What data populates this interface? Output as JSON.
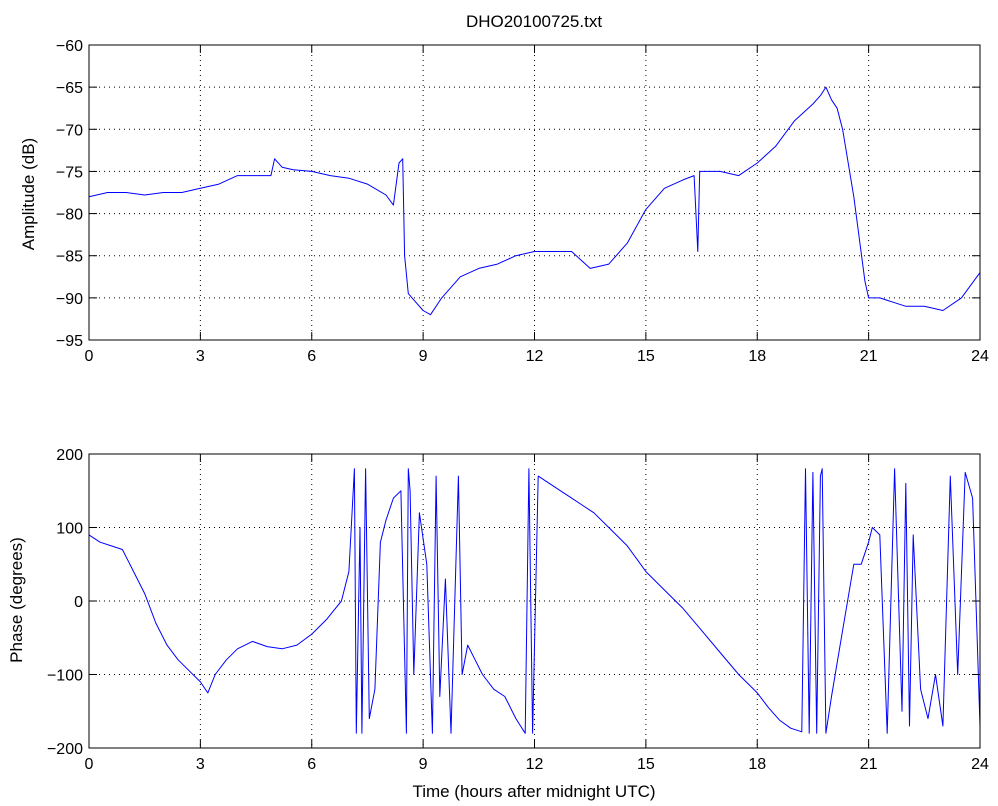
{
  "chart_data": [
    {
      "type": "line",
      "title": "DHO20100725.txt",
      "xlabel": "",
      "ylabel": "Amplitude (dB)",
      "xlim": [
        0,
        24
      ],
      "ylim": [
        -95,
        -60
      ],
      "xticks": [
        "0",
        "3",
        "6",
        "9",
        "12",
        "15",
        "18",
        "21",
        "24"
      ],
      "yticks": [
        "-95",
        "-90",
        "-85",
        "-80",
        "-75",
        "-70",
        "-65",
        "-60"
      ],
      "grid": true,
      "color": "#0000ff",
      "series": [
        {
          "x": [
            0,
            0.5,
            1,
            1.5,
            2,
            2.5,
            3,
            3.5,
            4,
            4.5,
            4.9,
            5.0,
            5.2,
            5.5,
            6,
            6.5,
            7,
            7.5,
            8,
            8.2,
            8.35,
            8.45,
            8.5,
            8.6,
            8.8,
            9.0,
            9.2,
            9.5,
            10,
            10.5,
            11,
            11.5,
            12,
            12.5,
            13,
            13.5,
            14,
            14.5,
            15,
            15.5,
            16,
            16.3,
            16.4,
            16.45,
            16.6,
            17,
            17.5,
            18,
            18.5,
            19,
            19.5,
            19.7,
            19.85,
            20,
            20.15,
            20.3,
            20.6,
            20.9,
            21,
            21.3,
            22,
            22.5,
            23,
            23.5,
            24
          ],
          "y": [
            -78,
            -77.5,
            -77.5,
            -77.8,
            -77.5,
            -77.5,
            -77,
            -76.5,
            -75.5,
            -75.5,
            -75.5,
            -73.5,
            -74.5,
            -74.8,
            -75,
            -75.5,
            -75.8,
            -76.5,
            -77.8,
            -79,
            -74,
            -73.5,
            -85,
            -89.5,
            -90.5,
            -91.5,
            -92,
            -90,
            -87.5,
            -86.5,
            -86,
            -85,
            -84.5,
            -84.5,
            -84.5,
            -86.5,
            -86,
            -83.5,
            -79.5,
            -77,
            -76,
            -75.5,
            -84.5,
            -75,
            -75,
            -75,
            -75.5,
            -74,
            -72,
            -69,
            -67,
            -66,
            -65,
            -66.5,
            -67.5,
            -70,
            -78,
            -88,
            -90,
            -90,
            -91,
            -91,
            -91.5,
            -90,
            -87
          ]
        }
      ]
    },
    {
      "type": "line",
      "title": "",
      "xlabel": "Time (hours after midnight UTC)",
      "ylabel": "Phase (degrees)",
      "xlim": [
        0,
        24
      ],
      "ylim": [
        -200,
        200
      ],
      "xticks": [
        "0",
        "3",
        "6",
        "9",
        "12",
        "15",
        "18",
        "21",
        "24"
      ],
      "yticks": [
        "-200",
        "-100",
        "0",
        "100",
        "200"
      ],
      "grid": true,
      "color": "#0000ff",
      "series": [
        {
          "x": [
            0,
            0.3,
            0.6,
            0.9,
            1.2,
            1.5,
            1.8,
            2.1,
            2.4,
            2.7,
            3.0,
            3.2,
            3.4,
            3.7,
            4.0,
            4.4,
            4.8,
            5.2,
            5.6,
            6.0,
            6.4,
            6.8,
            7.0,
            7.15,
            7.2,
            7.3,
            7.35,
            7.45,
            7.55,
            7.7,
            7.85,
            8.0,
            8.2,
            8.4,
            8.55,
            8.6,
            8.65,
            8.75,
            8.9,
            9.1,
            9.25,
            9.35,
            9.45,
            9.6,
            9.75,
            9.95,
            10.05,
            10.2,
            10.4,
            10.6,
            10.9,
            11.2,
            11.5,
            11.75,
            11.85,
            11.95,
            12.1,
            12.4,
            12.7,
            13.0,
            13.3,
            13.6,
            14.0,
            14.5,
            15.0,
            15.5,
            16.0,
            16.5,
            17.0,
            17.5,
            18.0,
            18.3,
            18.6,
            18.9,
            19.2,
            19.3,
            19.4,
            19.5,
            19.6,
            19.7,
            19.75,
            19.85,
            20.0,
            20.3,
            20.6,
            20.8,
            21.0,
            21.1,
            21.3,
            21.5,
            21.7,
            21.9,
            22.0,
            22.1,
            22.2,
            22.4,
            22.6,
            22.8,
            23.0,
            23.2,
            23.4,
            23.6,
            23.8,
            24.0
          ],
          "y": [
            90,
            80,
            75,
            70,
            40,
            10,
            -30,
            -60,
            -80,
            -95,
            -110,
            -125,
            -100,
            -80,
            -65,
            -55,
            -62,
            -65,
            -60,
            -45,
            -25,
            0,
            40,
            180,
            -180,
            100,
            -180,
            180,
            -160,
            -120,
            80,
            110,
            140,
            150,
            -180,
            180,
            150,
            -100,
            120,
            50,
            -180,
            170,
            -130,
            30,
            -180,
            170,
            -100,
            -60,
            -80,
            -100,
            -120,
            -130,
            -160,
            -180,
            180,
            -180,
            170,
            160,
            150,
            140,
            130,
            120,
            100,
            75,
            40,
            15,
            -10,
            -40,
            -70,
            -100,
            -125,
            -145,
            -162,
            -173,
            -178,
            180,
            -180,
            175,
            -180,
            170,
            180,
            -180,
            -130,
            -40,
            50,
            50,
            80,
            100,
            90,
            -180,
            180,
            -150,
            160,
            -170,
            90,
            -120,
            -160,
            -100,
            -170,
            170,
            -100,
            175,
            140,
            -170
          ]
        }
      ]
    }
  ]
}
